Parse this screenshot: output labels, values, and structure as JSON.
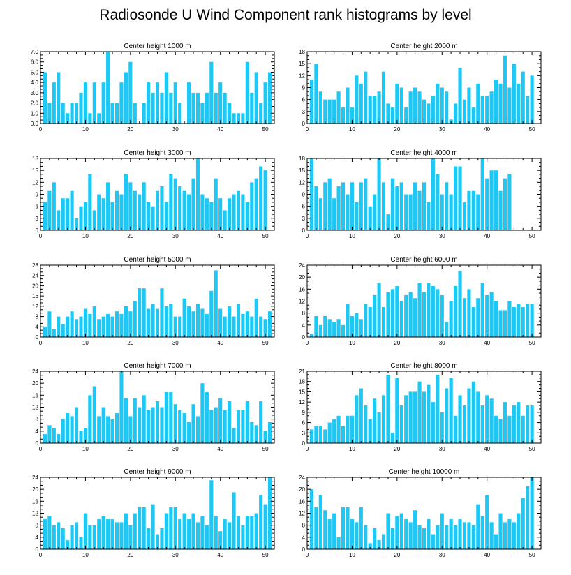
{
  "title": "Radiosonde U Wind Component rank histograms by level",
  "bar_color": "#1ec8f5",
  "chart_data": [
    {
      "type": "bar",
      "title": "Center height 1000 m",
      "categories": [
        1,
        2,
        3,
        4,
        5,
        6,
        7,
        8,
        9,
        10,
        11,
        12,
        13,
        14,
        15,
        16,
        17,
        18,
        19,
        20,
        21,
        22,
        23,
        24,
        25,
        26,
        27,
        28,
        29,
        30,
        31,
        32,
        33,
        34,
        35,
        36,
        37,
        38,
        39,
        40,
        41,
        42,
        43,
        44,
        45,
        46,
        47,
        48,
        49,
        50,
        51
      ],
      "values": [
        5,
        2,
        4,
        5,
        2,
        1,
        2,
        2,
        3,
        4,
        1,
        4,
        1,
        4,
        7,
        2,
        2,
        4,
        5,
        6,
        2,
        0,
        2,
        4,
        3,
        4,
        3,
        5,
        3,
        4,
        2,
        0,
        4,
        3,
        3,
        2,
        3,
        6,
        3,
        4,
        3,
        2,
        1,
        1,
        1,
        6,
        3,
        5,
        2,
        4,
        5
      ],
      "ylim": [
        0,
        7
      ],
      "yticks": [
        "0.0",
        "1.0",
        "2.0",
        "3.0",
        "4.0",
        "5.0",
        "6.0",
        "7.0"
      ],
      "xticks": [
        "0",
        "10",
        "20",
        "30",
        "40",
        "50"
      ]
    },
    {
      "type": "bar",
      "title": "Center height 2000 m",
      "categories": [
        1,
        2,
        3,
        4,
        5,
        6,
        7,
        8,
        9,
        10,
        11,
        12,
        13,
        14,
        15,
        16,
        17,
        18,
        19,
        20,
        21,
        22,
        23,
        24,
        25,
        26,
        27,
        28,
        29,
        30,
        31,
        32,
        33,
        34,
        35,
        36,
        37,
        38,
        39,
        40,
        41,
        42,
        43,
        44,
        45,
        46,
        47,
        48,
        49,
        50,
        51
      ],
      "values": [
        11,
        15,
        8,
        6,
        6,
        6,
        8,
        4,
        9,
        4,
        12,
        10,
        13,
        7,
        7,
        8,
        13,
        5,
        4,
        10,
        9,
        4,
        8,
        9,
        8,
        6,
        5,
        7,
        10,
        9,
        8,
        1,
        5,
        14,
        6,
        9,
        4,
        10,
        7,
        7,
        8,
        11,
        10,
        17,
        9,
        15,
        10,
        13,
        7,
        12,
        0
      ],
      "ylim": [
        0,
        18
      ],
      "yticks": [
        "0",
        "3",
        "6",
        "9",
        "12",
        "15",
        "18"
      ],
      "xticks": [
        "0",
        "10",
        "20",
        "30",
        "40",
        "50"
      ]
    },
    {
      "type": "bar",
      "title": "Center height 3000 m",
      "categories": [
        1,
        2,
        3,
        4,
        5,
        6,
        7,
        8,
        9,
        10,
        11,
        12,
        13,
        14,
        15,
        16,
        17,
        18,
        19,
        20,
        21,
        22,
        23,
        24,
        25,
        26,
        27,
        28,
        29,
        30,
        31,
        32,
        33,
        34,
        35,
        36,
        37,
        38,
        39,
        40,
        41,
        42,
        43,
        44,
        45,
        46,
        47,
        48,
        49,
        50,
        51
      ],
      "values": [
        7,
        10,
        12,
        5,
        8,
        8,
        10,
        3,
        6,
        7,
        14,
        5,
        9,
        8,
        12,
        7,
        10,
        9,
        14,
        12,
        10,
        9,
        12,
        7,
        6,
        10,
        11,
        7,
        14,
        13,
        11,
        10,
        9,
        13,
        18,
        9,
        8,
        7,
        13,
        8,
        5,
        8,
        9,
        10,
        9,
        7,
        12,
        13,
        16,
        15,
        0
      ],
      "ylim": [
        0,
        18
      ],
      "yticks": [
        "0",
        "3",
        "6",
        "9",
        "12",
        "15",
        "18"
      ],
      "xticks": [
        "0",
        "10",
        "20",
        "30",
        "40",
        "50"
      ]
    },
    {
      "type": "bar",
      "title": "Center height 4000 m",
      "categories": [
        1,
        2,
        3,
        4,
        5,
        6,
        7,
        8,
        9,
        10,
        11,
        12,
        13,
        14,
        15,
        16,
        17,
        18,
        19,
        20,
        21,
        22,
        23,
        24,
        25,
        26,
        27,
        28,
        29,
        30,
        31,
        32,
        33,
        34,
        35,
        36,
        37,
        38,
        39,
        40,
        41,
        42,
        43,
        44,
        45,
        46,
        47,
        48,
        49,
        50,
        51
      ],
      "values": [
        18,
        11,
        8,
        12,
        13,
        8,
        11,
        12,
        9,
        12,
        7,
        12,
        13,
        6,
        9,
        18,
        12,
        4,
        13,
        11,
        12,
        9,
        9,
        12,
        10,
        12,
        7,
        18,
        14,
        9,
        12,
        9,
        16,
        16,
        7,
        10,
        10,
        9,
        18,
        13,
        15,
        15,
        10,
        13,
        14,
        0,
        0,
        0,
        0,
        0,
        0
      ],
      "ylim": [
        0,
        18
      ],
      "yticks": [
        "0",
        "3",
        "6",
        "9",
        "12",
        "15",
        "18"
      ],
      "xticks": [
        "0",
        "10",
        "20",
        "30",
        "40",
        "50"
      ]
    },
    {
      "type": "bar",
      "title": "Center height 5000 m",
      "categories": [
        1,
        2,
        3,
        4,
        5,
        6,
        7,
        8,
        9,
        10,
        11,
        12,
        13,
        14,
        15,
        16,
        17,
        18,
        19,
        20,
        21,
        22,
        23,
        24,
        25,
        26,
        27,
        28,
        29,
        30,
        31,
        32,
        33,
        34,
        35,
        36,
        37,
        38,
        39,
        40,
        41,
        42,
        43,
        44,
        45,
        46,
        47,
        48,
        49,
        50,
        51
      ],
      "values": [
        4,
        10,
        3,
        8,
        5,
        8,
        10,
        7,
        8,
        11,
        9,
        12,
        7,
        8,
        9,
        8,
        10,
        9,
        12,
        10,
        14,
        19,
        19,
        11,
        13,
        11,
        19,
        12,
        13,
        8,
        8,
        15,
        12,
        10,
        13,
        11,
        9,
        18,
        26,
        11,
        8,
        12,
        8,
        13,
        9,
        10,
        8,
        15,
        8,
        7,
        10
      ],
      "ylim": [
        0,
        28
      ],
      "yticks": [
        "0",
        "4",
        "8",
        "12",
        "16",
        "20",
        "24",
        "28"
      ],
      "xticks": [
        "0",
        "10",
        "20",
        "30",
        "40",
        "50"
      ]
    },
    {
      "type": "bar",
      "title": "Center height 6000 m",
      "categories": [
        1,
        2,
        3,
        4,
        5,
        6,
        7,
        8,
        9,
        10,
        11,
        12,
        13,
        14,
        15,
        16,
        17,
        18,
        19,
        20,
        21,
        22,
        23,
        24,
        25,
        26,
        27,
        28,
        29,
        30,
        31,
        32,
        33,
        34,
        35,
        36,
        37,
        38,
        39,
        40,
        41,
        42,
        43,
        44,
        45,
        46,
        47,
        48,
        49,
        50,
        51
      ],
      "values": [
        1,
        7,
        4,
        7,
        6,
        5,
        6,
        4,
        11,
        7,
        8,
        6,
        11,
        10,
        14,
        18,
        10,
        15,
        16,
        17,
        12,
        14,
        15,
        13,
        18,
        15,
        18,
        17,
        16,
        14,
        5,
        12,
        17,
        22,
        13,
        16,
        10,
        13,
        18,
        14,
        15,
        12,
        9,
        9,
        12,
        10,
        11,
        10,
        11,
        11,
        0
      ],
      "ylim": [
        0,
        24
      ],
      "yticks": [
        "0",
        "4",
        "8",
        "12",
        "16",
        "20",
        "24"
      ],
      "xticks": [
        "0",
        "10",
        "20",
        "30",
        "40",
        "50"
      ]
    },
    {
      "type": "bar",
      "title": "Center height 7000 m",
      "categories": [
        1,
        2,
        3,
        4,
        5,
        6,
        7,
        8,
        9,
        10,
        11,
        12,
        13,
        14,
        15,
        16,
        17,
        18,
        19,
        20,
        21,
        22,
        23,
        24,
        25,
        26,
        27,
        28,
        29,
        30,
        31,
        32,
        33,
        34,
        35,
        36,
        37,
        38,
        39,
        40,
        41,
        42,
        43,
        44,
        45,
        46,
        47,
        48,
        49,
        50,
        51
      ],
      "values": [
        3,
        6,
        5,
        3,
        8,
        10,
        9,
        12,
        4,
        5,
        16,
        19,
        9,
        12,
        9,
        8,
        10,
        24,
        15,
        9,
        15,
        12,
        16,
        11,
        12,
        14,
        12,
        17,
        17,
        13,
        11,
        10,
        7,
        13,
        9,
        20,
        17,
        11,
        12,
        15,
        11,
        14,
        5,
        11,
        11,
        14,
        7,
        6,
        14,
        4,
        7
      ],
      "ylim": [
        0,
        24
      ],
      "yticks": [
        "0",
        "4",
        "8",
        "12",
        "16",
        "20",
        "24"
      ],
      "xticks": [
        "0",
        "10",
        "20",
        "30",
        "40",
        "50"
      ]
    },
    {
      "type": "bar",
      "title": "Center height 8000 m",
      "categories": [
        1,
        2,
        3,
        4,
        5,
        6,
        7,
        8,
        9,
        10,
        11,
        12,
        13,
        14,
        15,
        16,
        17,
        18,
        19,
        20,
        21,
        22,
        23,
        24,
        25,
        26,
        27,
        28,
        29,
        30,
        31,
        32,
        33,
        34,
        35,
        36,
        37,
        38,
        39,
        40,
        41,
        42,
        43,
        44,
        45,
        46,
        47,
        48,
        49,
        50,
        51
      ],
      "values": [
        4,
        5,
        5,
        4,
        6,
        7,
        8,
        5,
        8,
        8,
        14,
        16,
        11,
        7,
        13,
        9,
        14,
        20,
        3,
        19,
        11,
        14,
        15,
        15,
        18,
        15,
        17,
        12,
        20,
        9,
        16,
        19,
        8,
        14,
        11,
        16,
        18,
        15,
        11,
        14,
        13,
        8,
        7,
        12,
        8,
        11,
        12,
        8,
        11,
        11,
        0
      ],
      "ylim": [
        0,
        21
      ],
      "yticks": [
        "0",
        "3",
        "6",
        "9",
        "12",
        "15",
        "18",
        "21"
      ],
      "xticks": [
        "0",
        "10",
        "20",
        "30",
        "40",
        "50"
      ]
    },
    {
      "type": "bar",
      "title": "Center height 9000 m",
      "categories": [
        1,
        2,
        3,
        4,
        5,
        6,
        7,
        8,
        9,
        10,
        11,
        12,
        13,
        14,
        15,
        16,
        17,
        18,
        19,
        20,
        21,
        22,
        23,
        24,
        25,
        26,
        27,
        28,
        29,
        30,
        31,
        32,
        33,
        34,
        35,
        36,
        37,
        38,
        39,
        40,
        41,
        42,
        43,
        44,
        45,
        46,
        47,
        48,
        49,
        50,
        51
      ],
      "values": [
        10,
        11,
        8,
        9,
        7,
        3,
        8,
        9,
        4,
        12,
        8,
        8,
        10,
        11,
        10,
        10,
        9,
        9,
        12,
        8,
        12,
        14,
        14,
        7,
        15,
        5,
        7,
        12,
        14,
        14,
        10,
        12,
        10,
        12,
        9,
        11,
        8,
        23,
        11,
        6,
        10,
        9,
        19,
        11,
        8,
        11,
        11,
        12,
        18,
        15,
        24
      ],
      "ylim": [
        0,
        24
      ],
      "yticks": [
        "0",
        "4",
        "8",
        "12",
        "16",
        "20",
        "24"
      ],
      "xticks": [
        "0",
        "10",
        "20",
        "30",
        "40",
        "50"
      ]
    },
    {
      "type": "bar",
      "title": "Center height 10000 m",
      "categories": [
        1,
        2,
        3,
        4,
        5,
        6,
        7,
        8,
        9,
        10,
        11,
        12,
        13,
        14,
        15,
        16,
        17,
        18,
        19,
        20,
        21,
        22,
        23,
        24,
        25,
        26,
        27,
        28,
        29,
        30,
        31,
        32,
        33,
        34,
        35,
        36,
        37,
        38,
        39,
        40,
        41,
        42,
        43,
        44,
        45,
        46,
        47,
        48,
        49,
        50,
        51
      ],
      "values": [
        20,
        14,
        18,
        13,
        10,
        12,
        4,
        14,
        14,
        10,
        9,
        14,
        8,
        2,
        7,
        3,
        5,
        12,
        7,
        11,
        12,
        10,
        9,
        13,
        8,
        7,
        10,
        5,
        8,
        12,
        8,
        10,
        8,
        10,
        9,
        9,
        8,
        15,
        11,
        18,
        9,
        5,
        12,
        9,
        10,
        9,
        12,
        17,
        21,
        24,
        0
      ],
      "ylim": [
        0,
        24
      ],
      "yticks": [
        "0",
        "4",
        "8",
        "12",
        "16",
        "20",
        "24"
      ],
      "xticks": [
        "0",
        "10",
        "20",
        "30",
        "40",
        "50"
      ]
    }
  ]
}
